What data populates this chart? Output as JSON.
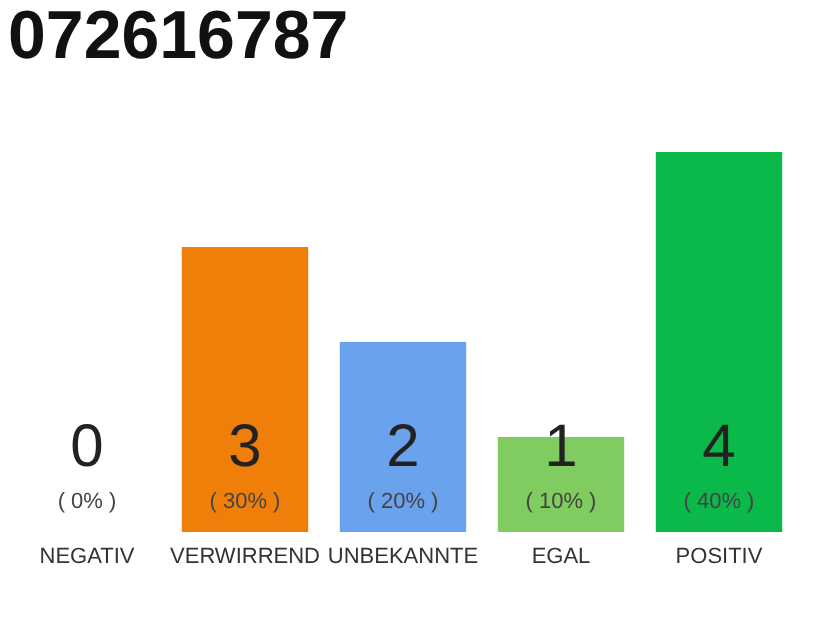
{
  "chart_data": {
    "type": "bar",
    "title": "072616787",
    "categories": [
      "NEGATIV",
      "VERWIRREND",
      "UNBEKANNTE",
      "EGAL",
      "POSITIV"
    ],
    "values": [
      0,
      3,
      2,
      1,
      4
    ],
    "colors": [
      "#888888",
      "#f07f0a",
      "#6aa2ee",
      "#80cc60",
      "#0bb84a"
    ],
    "data_labels": true,
    "annotations": [
      {
        "text": "( 0% )",
        "x": "NEGATIV",
        "y": 0
      },
      {
        "text": "( 30% )",
        "x": "VERWIRREND",
        "y": 0
      },
      {
        "text": "( 20% )",
        "x": "UNBEKANNTE",
        "y": 0
      },
      {
        "text": "( 10% )",
        "x": "EGAL",
        "y": 0
      },
      {
        "text": "( 40% )",
        "x": "POSITIV",
        "y": 0
      }
    ],
    "tick_labels": "x"
  }
}
